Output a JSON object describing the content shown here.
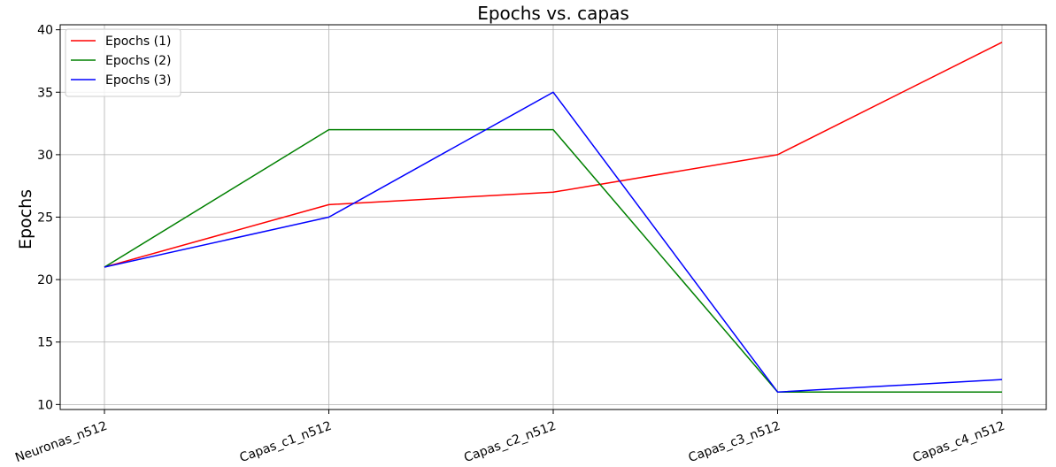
{
  "chart_data": {
    "type": "line",
    "title": "Epochs vs. capas",
    "xlabel": "",
    "ylabel": "Epochs",
    "categories": [
      "Neuronas_n512",
      "Capas_c1_n512",
      "Capas_c2_n512",
      "Capas_c3_n512",
      "Capas_c4_n512"
    ],
    "ylim": [
      9.6,
      40.4
    ],
    "yticks": [
      10,
      15,
      20,
      25,
      30,
      35,
      40
    ],
    "grid": true,
    "legend_position": "top-left",
    "series": [
      {
        "name": "Epochs (1)",
        "color": "#ff0000",
        "values": [
          21,
          26,
          27,
          30,
          39
        ]
      },
      {
        "name": "Epochs (2)",
        "color": "#008000",
        "values": [
          21,
          32,
          32,
          11,
          11
        ]
      },
      {
        "name": "Epochs (3)",
        "color": "#0000ff",
        "values": [
          21,
          25,
          35,
          11,
          12
        ]
      }
    ]
  }
}
